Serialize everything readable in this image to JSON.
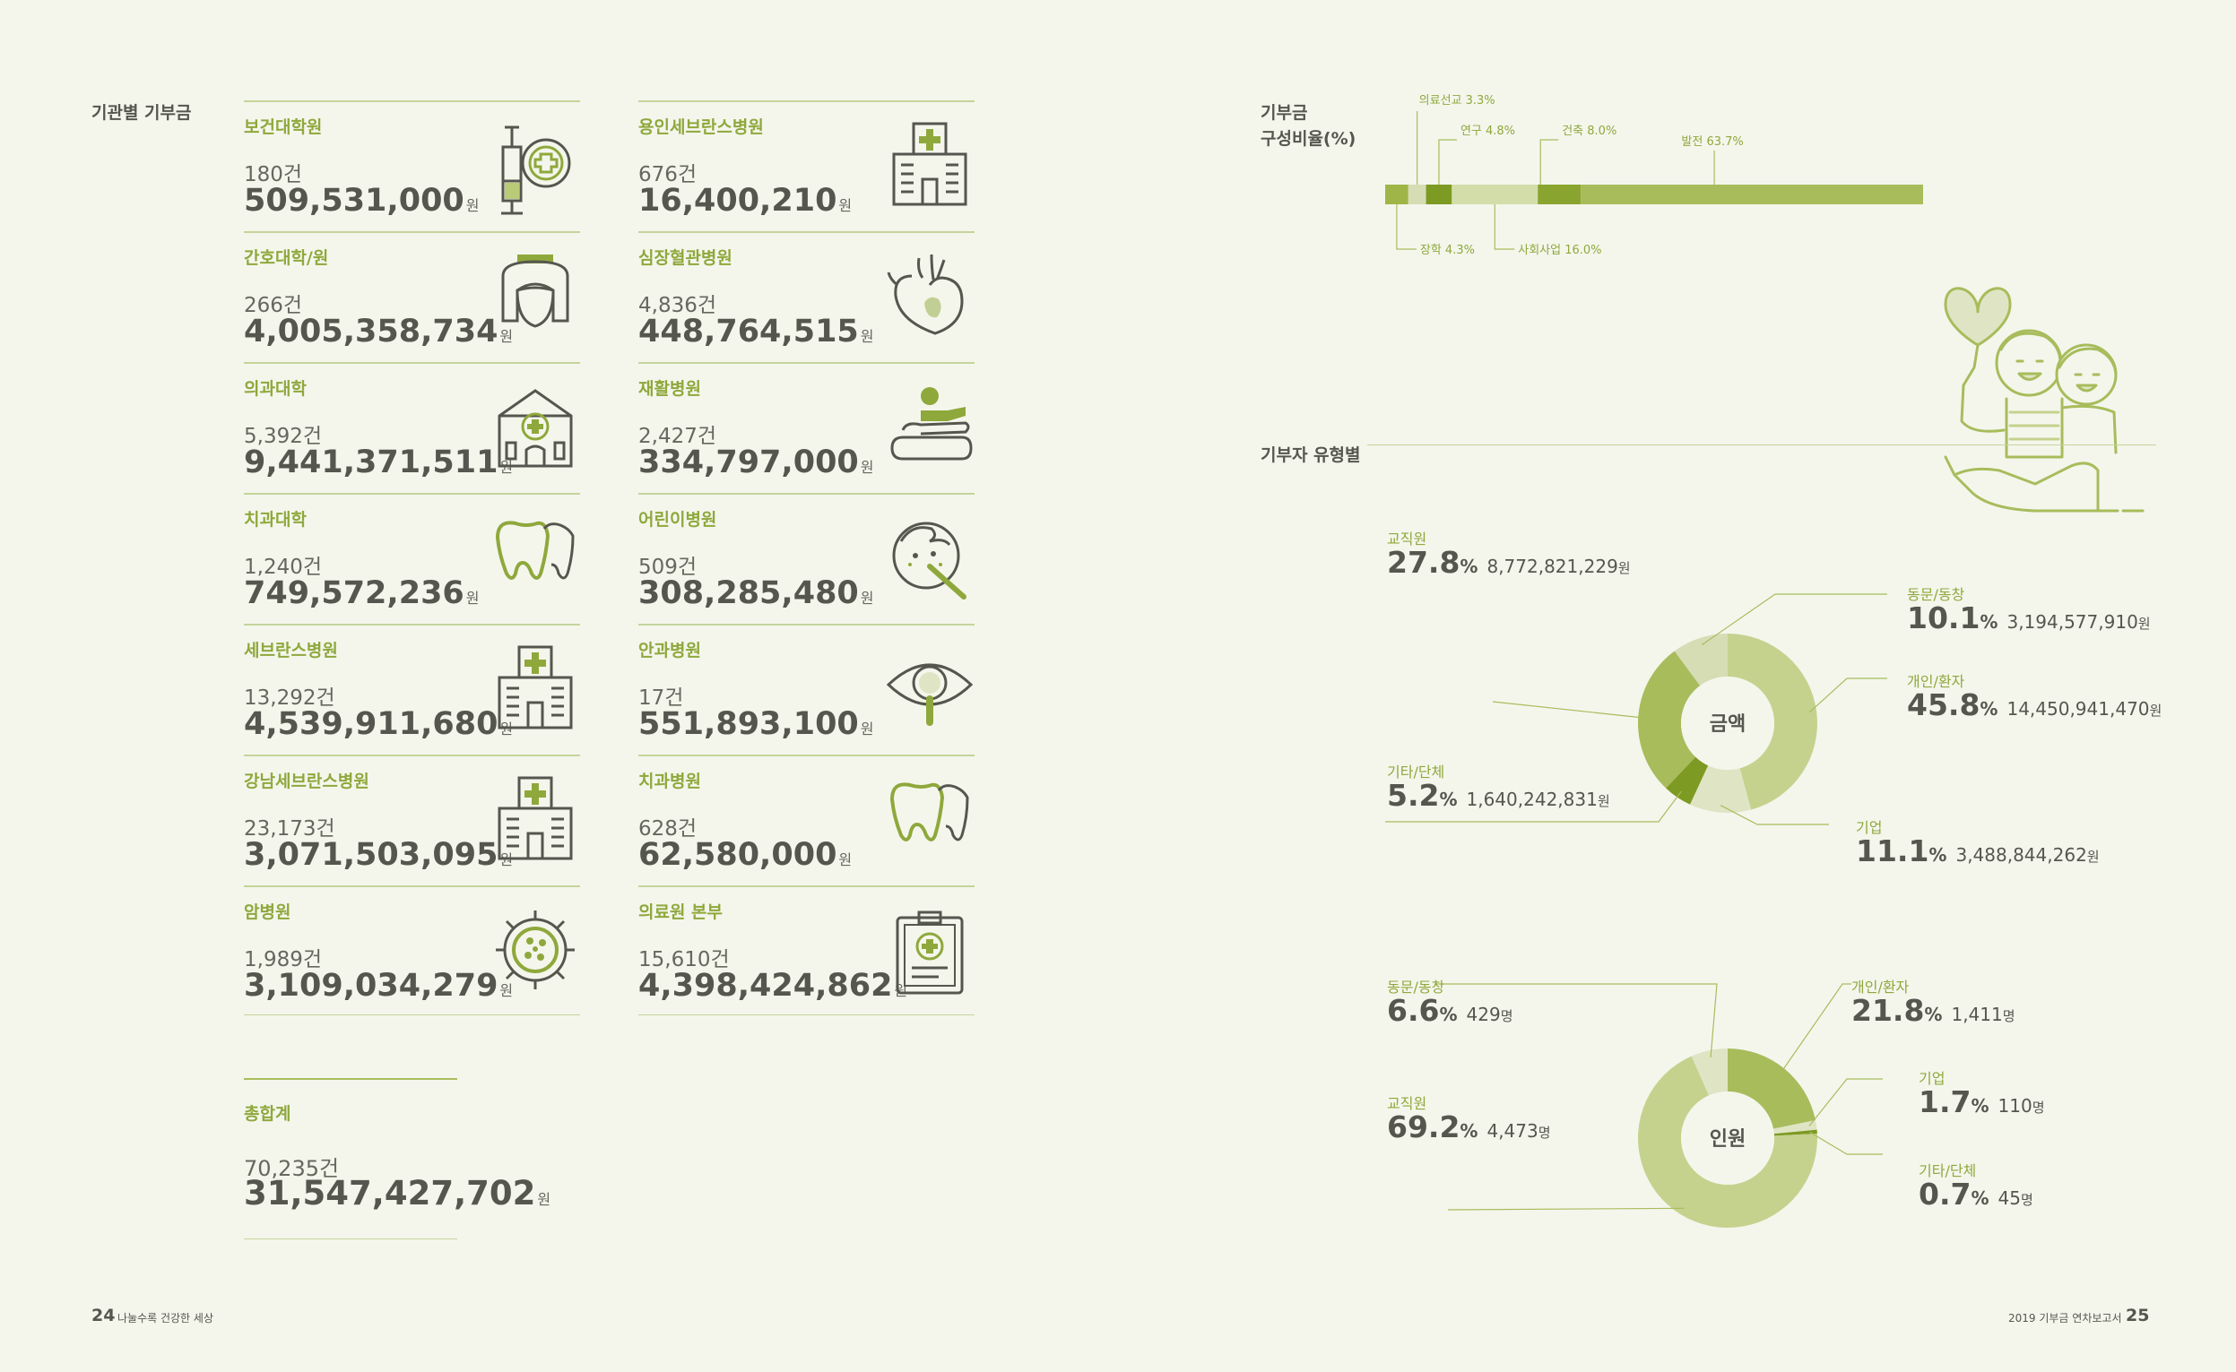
{
  "left_page": {
    "section_title": "기관별 기부금",
    "institutions": [
      {
        "name": "보건대학원",
        "count": "180",
        "amount": "509,531,000",
        "icon": "syringe-medical-icon"
      },
      {
        "name": "간호대학/원",
        "count": "266",
        "amount": "4,005,358,734",
        "icon": "nurse-icon"
      },
      {
        "name": "의과대학",
        "count": "5,392",
        "amount": "9,441,371,511",
        "icon": "medical-school-building-icon"
      },
      {
        "name": "치과대학",
        "count": "1,240",
        "amount": "749,572,236",
        "icon": "teeth-icon"
      },
      {
        "name": "세브란스병원",
        "count": "13,292",
        "amount": "4,539,911,680",
        "icon": "hospital-building-icon"
      },
      {
        "name": "강남세브란스병원",
        "count": "23,173",
        "amount": "3,071,503,095",
        "icon": "hospital-building-icon"
      },
      {
        "name": "암병원",
        "count": "1,989",
        "amount": "3,109,034,279",
        "icon": "cancer-cell-icon"
      },
      {
        "name": "용인세브란스병원",
        "count": "676",
        "amount": "16,400,210",
        "icon": "hospital-building-icon"
      },
      {
        "name": "심장혈관병원",
        "count": "4,836",
        "amount": "448,764,515",
        "icon": "heart-icon"
      },
      {
        "name": "재활병원",
        "count": "2,427",
        "amount": "334,797,000",
        "icon": "rehabilitation-icon"
      },
      {
        "name": "어린이병원",
        "count": "509",
        "amount": "308,285,480",
        "icon": "child-thermometer-icon"
      },
      {
        "name": "안과병원",
        "count": "17",
        "amount": "551,893,100",
        "icon": "eye-magnifier-icon"
      },
      {
        "name": "치과병원",
        "count": "628",
        "amount": "62,580,000",
        "icon": "teeth-icon"
      },
      {
        "name": "의료원 본부",
        "count": "15,610",
        "amount": "4,398,424,862",
        "icon": "clipboard-medical-icon"
      }
    ],
    "count_unit": "건",
    "amount_unit": "원",
    "total": {
      "label": "총합계",
      "count": "70,235",
      "amount": "31,547,427,702"
    },
    "page_number": "24",
    "footer_text": "나눌수록 건강한 세상"
  },
  "right_page": {
    "composition_title_line1": "기부금",
    "composition_title_line2": "구성비율(%)",
    "composition_chart": {
      "type": "bar",
      "orientation": "stacked-horizontal",
      "segments": [
        {
          "name": "장학",
          "pct": 4.3,
          "label": "장학 4.3%",
          "color": "#9fb547"
        },
        {
          "name": "의료선교",
          "pct": 3.3,
          "label": "의료선교 3.3%",
          "color": "#d6ddb5"
        },
        {
          "name": "연구",
          "pct": 4.8,
          "label": "연구 4.8%",
          "color": "#7d9a22"
        },
        {
          "name": "사회사업",
          "pct": 16.0,
          "label": "사회사업 16.0%",
          "color": "#d3ddaa"
        },
        {
          "name": "건축",
          "pct": 8.0,
          "label": "건축 8.0%",
          "color": "#8aa52f"
        },
        {
          "name": "발전",
          "pct": 63.7,
          "label": "발전 63.7%",
          "color": "#a8bc5c"
        }
      ]
    },
    "donor_type_title": "기부자 유형별",
    "amount_chart": {
      "type": "pie",
      "center_label": "금액",
      "percent_sign": "%",
      "slices": [
        {
          "name": "개인/환자",
          "pct": 45.8,
          "pct_text": "45.8",
          "value": "14,450,941,470",
          "unit": "원",
          "color": "#c5d28e"
        },
        {
          "name": "기업",
          "pct": 11.1,
          "pct_text": "11.1",
          "value": "3,488,844,262",
          "unit": "원",
          "color": "#dfe5c4"
        },
        {
          "name": "기타/단체",
          "pct": 5.2,
          "pct_text": "5.2",
          "value": "1,640,242,831",
          "unit": "원",
          "color": "#7d9a22"
        },
        {
          "name": "교직원",
          "pct": 27.8,
          "pct_text": "27.8",
          "value": "8,772,821,229",
          "unit": "원",
          "color": "#a8bc5c"
        },
        {
          "name": "동문/동창",
          "pct": 10.1,
          "pct_text": "10.1",
          "value": "3,194,577,910",
          "unit": "원",
          "color": "#d6ddb5"
        }
      ]
    },
    "people_chart": {
      "type": "pie",
      "center_label": "인원",
      "percent_sign": "%",
      "slices": [
        {
          "name": "개인/환자",
          "pct": 21.8,
          "pct_text": "21.8",
          "value": "1,411",
          "unit": "명",
          "color": "#a8bc5c"
        },
        {
          "name": "기업",
          "pct": 1.7,
          "pct_text": "1.7",
          "value": "110",
          "unit": "명",
          "color": "#dfe5c4"
        },
        {
          "name": "기타/단체",
          "pct": 0.7,
          "pct_text": "0.7",
          "value": "45",
          "unit": "명",
          "color": "#7d9a22"
        },
        {
          "name": "교직원",
          "pct": 69.2,
          "pct_text": "69.2",
          "value": "4,473",
          "unit": "명",
          "color": "#c5d28e"
        },
        {
          "name": "동문/동창",
          "pct": 6.6,
          "pct_text": "6.6",
          "value": "429",
          "unit": "명",
          "color": "#dfe5c4"
        }
      ]
    },
    "page_number": "25",
    "footer_text": "2019 기부금 연차보고서"
  },
  "chart_data": [
    {
      "type": "bar",
      "title": "기부금 구성비율(%)",
      "categories": [
        "장학",
        "의료선교",
        "연구",
        "사회사업",
        "건축",
        "발전"
      ],
      "values": [
        4.3,
        3.3,
        4.8,
        16.0,
        8.0,
        63.7
      ]
    },
    {
      "type": "pie",
      "title": "금액",
      "categories": [
        "개인/환자",
        "기업",
        "기타/단체",
        "교직원",
        "동문/동창"
      ],
      "values": [
        45.8,
        11.1,
        5.2,
        27.8,
        10.1
      ]
    },
    {
      "type": "pie",
      "title": "인원",
      "categories": [
        "개인/환자",
        "기업",
        "기타/단체",
        "교직원",
        "동문/동창"
      ],
      "values": [
        21.8,
        1.7,
        0.7,
        69.2,
        6.6
      ]
    }
  ]
}
